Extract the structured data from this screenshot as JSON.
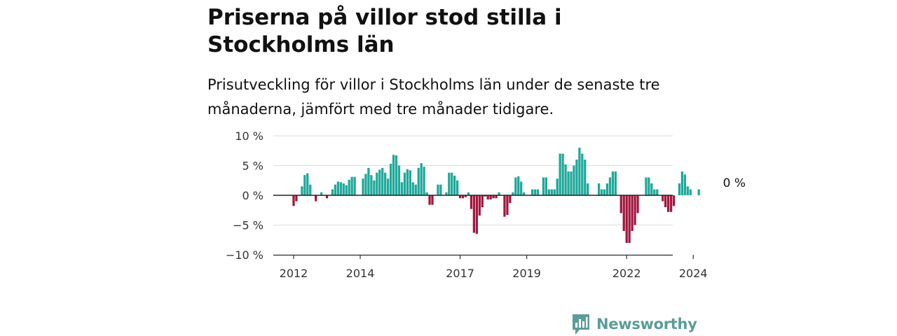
{
  "header": {
    "title": "Priserna på villor stod stilla i Stockholms län",
    "subtitle": "Prisutveckling för villor i Stockholms län under de senaste tre månaderna, jämfört med tre månader tidigare."
  },
  "brand": {
    "name": "Newsworthy",
    "logo_icon": "bar-chart-speech-bubble-icon",
    "color": "#5d9c97"
  },
  "colors": {
    "positive": "#1fa89a",
    "negative": "#a3173f",
    "grid": "#dddddd",
    "axis": "#333333"
  },
  "chart_data": {
    "type": "bar",
    "ylim": [
      -10,
      10
    ],
    "yticks": [
      {
        "value": 10,
        "label": "10 %"
      },
      {
        "value": 5,
        "label": "5 %"
      },
      {
        "value": 0,
        "label": "0 %"
      },
      {
        "value": -5,
        "label": "−5 %"
      },
      {
        "value": -10,
        "label": "−10 %"
      }
    ],
    "xticks": [
      {
        "year": 2012,
        "label": "2012"
      },
      {
        "year": 2014,
        "label": "2014"
      },
      {
        "year": 2017,
        "label": "2017"
      },
      {
        "year": 2019,
        "label": "2019"
      },
      {
        "year": 2022,
        "label": "2022"
      },
      {
        "year": 2024,
        "label": "2024"
      }
    ],
    "start": "2012-01",
    "end": "2025-03",
    "annotation": {
      "text": "0 %",
      "date": "2025-03",
      "value": 0
    },
    "values": [
      -1.8,
      -1,
      0,
      1.5,
      3.4,
      3.7,
      1.8,
      0,
      -1,
      0,
      0.5,
      0,
      -0.5,
      0,
      1,
      1.8,
      2.3,
      2.2,
      2,
      1.7,
      2.6,
      3.1,
      3.1,
      0,
      0,
      2.8,
      3.6,
      4.6,
      3.4,
      2.5,
      3.8,
      4.3,
      4.6,
      3.8,
      2.8,
      5.3,
      6.8,
      6.7,
      5,
      2.2,
      3.8,
      4.4,
      4.2,
      2.2,
      1.8,
      4.6,
      5.4,
      4.8,
      0.5,
      -1.6,
      -1.6,
      0,
      1.8,
      1.8,
      0,
      0.5,
      3.8,
      3.8,
      3.3,
      2.5,
      -0.5,
      -0.5,
      -0.3,
      0.5,
      -2.3,
      -6.3,
      -6.5,
      -3.4,
      -2,
      -0.2,
      -0.7,
      -0.7,
      -0.5,
      -0.5,
      0.5,
      0,
      -3.6,
      -3.3,
      -1.3,
      0.5,
      3,
      3.2,
      2.3,
      0.5,
      0,
      0,
      1,
      1,
      1,
      0,
      3,
      3,
      1,
      1,
      1,
      2.8,
      7,
      7,
      5.2,
      4,
      4,
      5,
      6,
      8,
      7,
      6,
      2,
      0,
      0,
      0,
      2,
      1,
      1,
      2,
      3,
      4,
      4,
      0,
      -3,
      -6,
      -8,
      -8,
      -6,
      -5,
      -3,
      0,
      0,
      3,
      3,
      2,
      1,
      1,
      0,
      -1,
      -2,
      -2.8,
      -2.8,
      -1.8,
      0,
      2,
      4,
      3.5,
      1.5,
      1,
      0,
      0,
      1,
      0,
      0
    ]
  }
}
